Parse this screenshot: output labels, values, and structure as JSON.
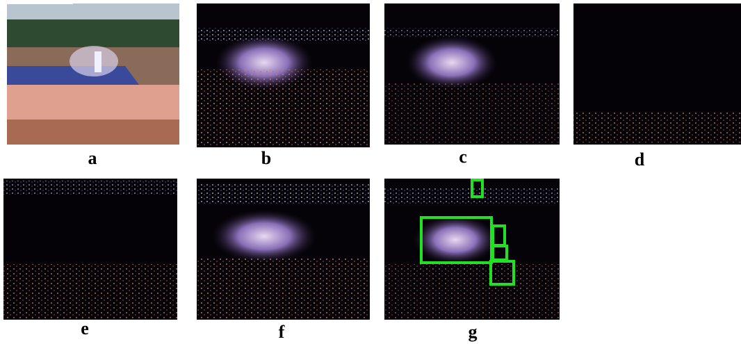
{
  "panels": [
    {
      "label": "a"
    },
    {
      "label": "b"
    },
    {
      "label": "c"
    },
    {
      "label": "d"
    },
    {
      "label": "e"
    },
    {
      "label": "f"
    },
    {
      "label": "g"
    }
  ]
}
